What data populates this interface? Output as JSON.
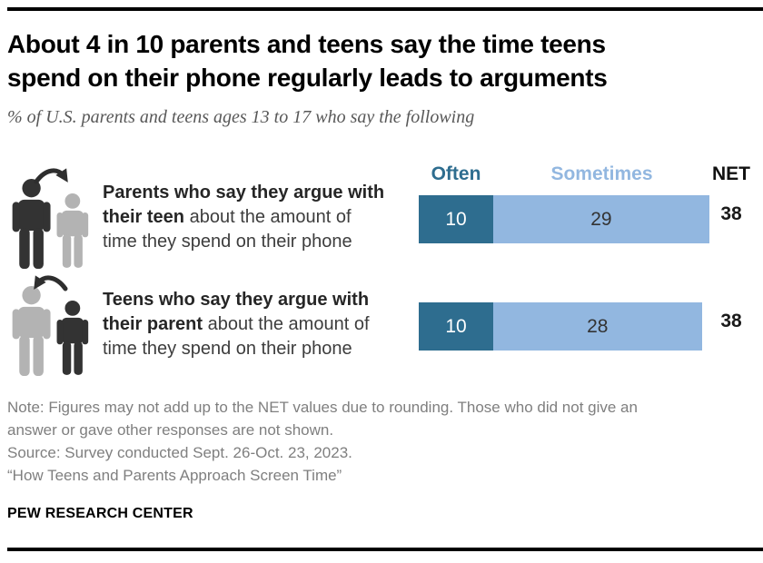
{
  "header": {
    "title": "About 4 in 10 parents and teens say the time teens\nspend on their phone regularly leads to arguments",
    "subtitle": "% of U.S. parents and teens ages 13 to 17 who say the following"
  },
  "legend": {
    "often": "Often",
    "sometimes": "Sometimes",
    "net": "NET"
  },
  "chart_data": {
    "type": "bar",
    "orientation": "horizontal",
    "stacked": true,
    "categories": [
      "Parents who say they argue with their teen about the amount of time they spend on their phone",
      "Teens who say they argue with their parent about the amount of time they spend on their phone"
    ],
    "series": [
      {
        "name": "Often",
        "values": [
          10,
          10
        ],
        "color": "#2E6D8F"
      },
      {
        "name": "Sometimes",
        "values": [
          29,
          28
        ],
        "color": "#92B7E0"
      }
    ],
    "net_label": "NET",
    "net_values": [
      38,
      38
    ],
    "xlim": [
      0,
      40
    ],
    "grid": false,
    "legend_position": "top"
  },
  "rows": [
    {
      "label_bold": "Parents who say they argue with\ntheir teen",
      "label_rest": " about the amount of\ntime they spend on their phone",
      "icon": "parent-to-teen-argument-icon"
    },
    {
      "label_bold": "Teens who say they argue with\ntheir parent",
      "label_rest": " about the amount of\ntime they spend on their phone",
      "icon": "teen-to-parent-argument-icon"
    }
  ],
  "icon_colors": {
    "dark_figure": "#333333",
    "gray_figure": "#B3B3B3",
    "arrow": "#2E2E2E"
  },
  "footer": {
    "note_lines": [
      "Note: Figures may not add up to the NET values due to rounding. Those who did not give an",
      "answer or gave other responses are not shown.",
      "Source: Survey conducted Sept. 26-Oct. 23, 2023.",
      "“How Teens and Parents Approach Screen Time”"
    ],
    "brand": "PEW RESEARCH CENTER"
  }
}
